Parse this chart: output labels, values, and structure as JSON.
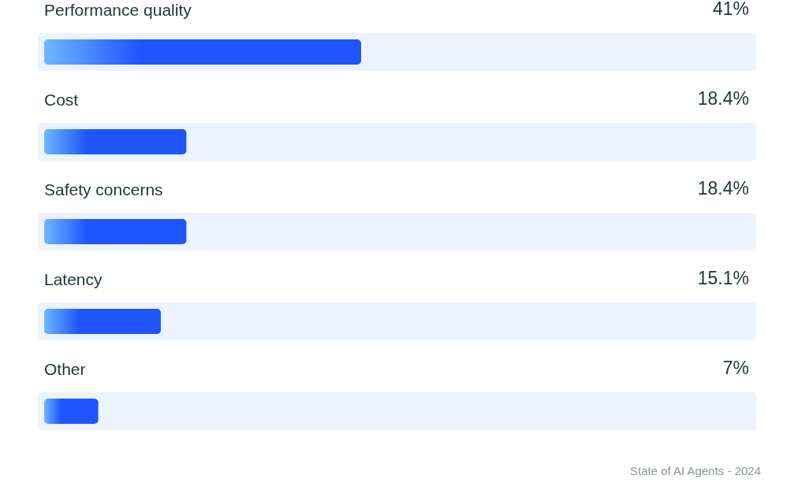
{
  "chart_data": {
    "type": "bar",
    "orientation": "horizontal",
    "categories": [
      "Performance quality",
      "Cost",
      "Safety concerns",
      "Latency",
      "Other"
    ],
    "values": [
      41,
      18.4,
      18.4,
      15.1,
      7
    ],
    "value_labels": [
      "41%",
      "18.4%",
      "18.4%",
      "15.1%",
      "7%"
    ],
    "color": "#1f55ff",
    "annotations": [
      "State of AI Agents - 2024"
    ]
  }
}
